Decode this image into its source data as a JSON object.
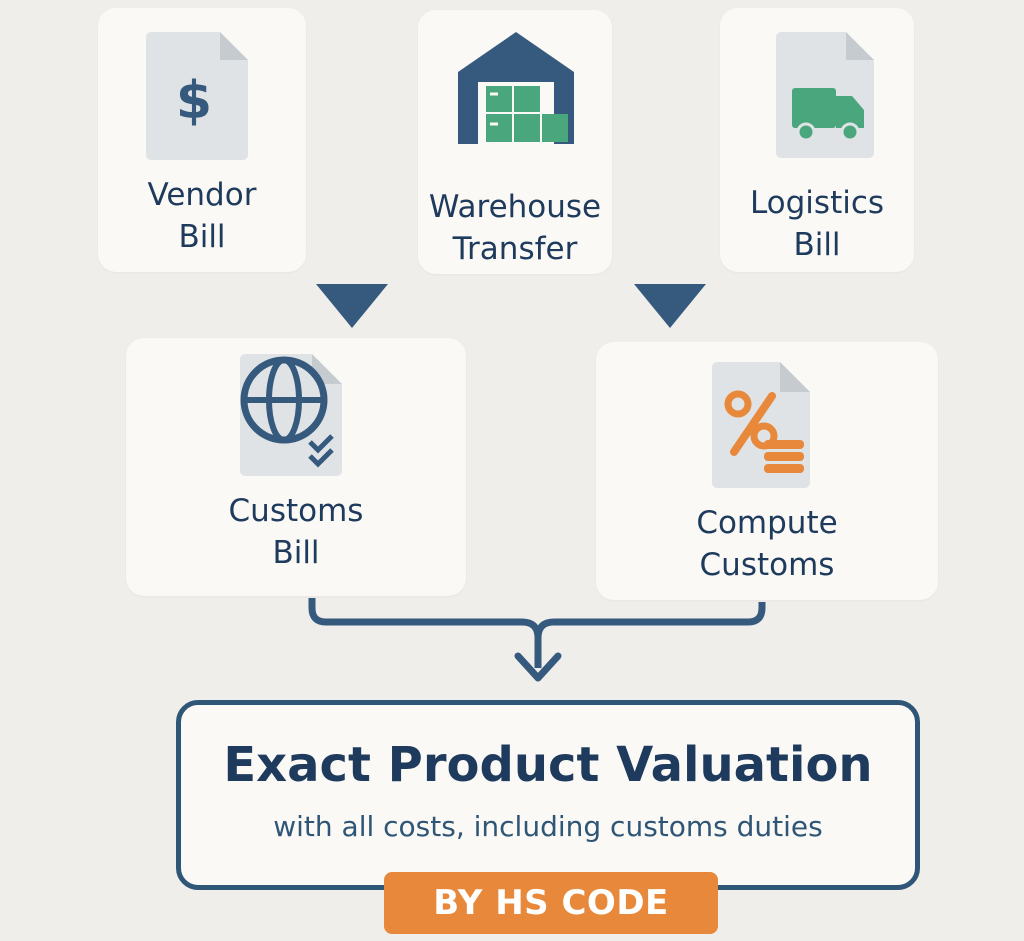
{
  "colors": {
    "background": "#efeeeb",
    "card": "#faf9f5",
    "navy": "#1e3a5c",
    "arrow_blue": "#365a7d",
    "green": "#4aa67c",
    "orange": "#e7883a"
  },
  "sources": [
    {
      "label": "Vendor\nBill",
      "icon": "dollar-document-icon"
    },
    {
      "label": "Warehouse\nTransfer",
      "icon": "warehouse-icon"
    },
    {
      "label": "Logistics\nBill",
      "icon": "truck-document-icon"
    }
  ],
  "middle": [
    {
      "label": "Customs\nBill",
      "icon": "globe-document-icon"
    },
    {
      "label": "Compute\nCustoms",
      "icon": "percent-coins-document-icon"
    }
  ],
  "result": {
    "title": "Exact Product Valuation",
    "subtitle": "with all costs, including customs duties",
    "badge": "BY HS CODE"
  }
}
